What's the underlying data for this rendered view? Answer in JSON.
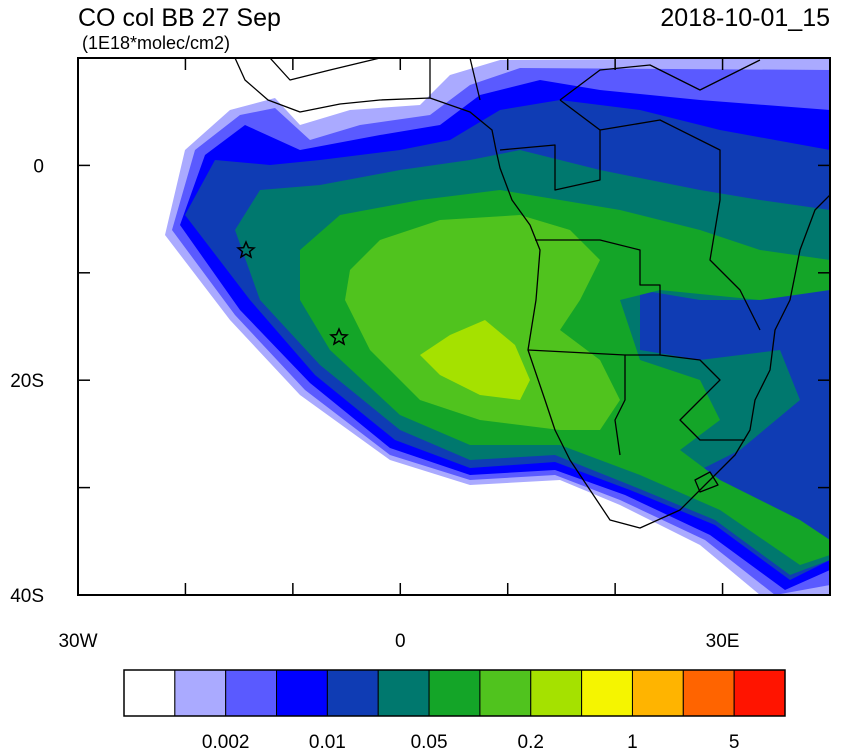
{
  "header": {
    "title": "CO col BB 27 Sep",
    "units": "(1E18*molec/cm2)",
    "datetime": "2018-10-01_15"
  },
  "map": {
    "xlim": [
      -30,
      40
    ],
    "ylim": [
      -40,
      10
    ],
    "xticks": [
      {
        "value": -30,
        "label": "30W"
      },
      0,
      {
        "value": 30,
        "label": "30E"
      }
    ],
    "yticks": [
      0,
      {
        "value": -20,
        "label": "20S"
      },
      {
        "value": -40,
        "label": "40S"
      }
    ],
    "xminor": [
      -20,
      -10,
      10,
      20,
      40
    ],
    "yminor": [
      10,
      -10,
      -30
    ]
  },
  "colorbar": {
    "colors": [
      "#ffffff",
      "#aaaaff",
      "#5a5aff",
      "#0000ff",
      "#0f3cb4",
      "#00786e",
      "#14a528",
      "#50c31e",
      "#a5e100",
      "#f5f500",
      "#ffb400",
      "#ff6400",
      "#ff1400"
    ],
    "labels": [
      0.002,
      0.01,
      0.05,
      0.2,
      1,
      5
    ]
  }
}
